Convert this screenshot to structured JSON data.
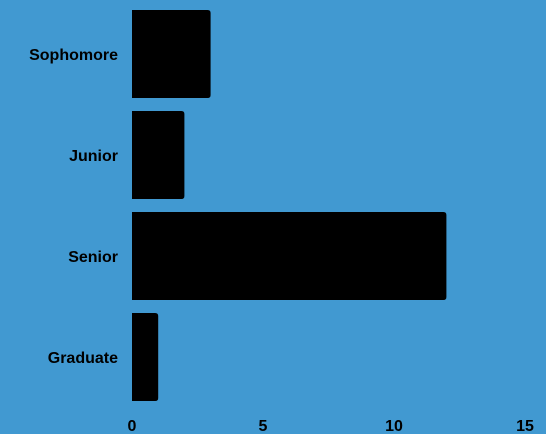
{
  "chart_data": {
    "type": "bar",
    "orientation": "horizontal",
    "title": "",
    "xlabel": "",
    "ylabel": "",
    "categories": [
      "Sophomore",
      "Junior",
      "Senior",
      "Graduate"
    ],
    "values": [
      3,
      2,
      12,
      1
    ],
    "xlim": [
      0,
      15
    ],
    "xticks": [
      "0",
      "5",
      "10",
      "15"
    ],
    "grid": false,
    "legend": "none"
  },
  "colors": {
    "background": "#4199d1",
    "bar": "#000000",
    "text": "#000000"
  }
}
